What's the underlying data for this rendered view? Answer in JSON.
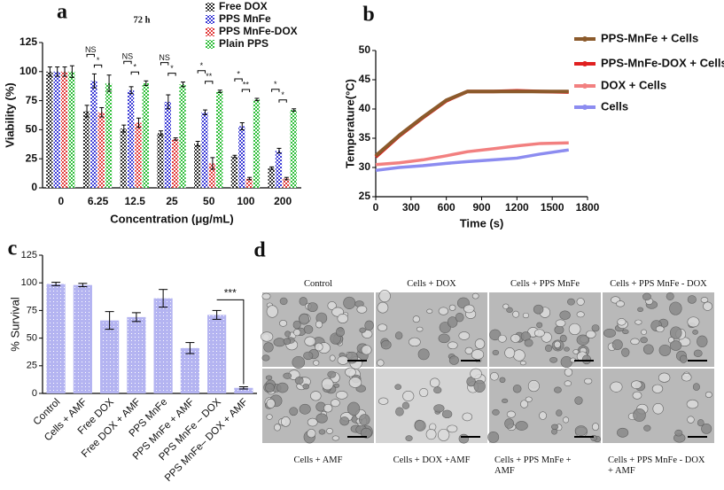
{
  "chart_data": [
    {
      "type": "bar",
      "label": "a",
      "title": "72 h",
      "x_label": "Concentration (μg/mL)",
      "y_label": "Viability (%)",
      "categories": [
        "0",
        "6.25",
        "12.5",
        "25",
        "50",
        "100",
        "200"
      ],
      "series": [
        {
          "name": "Free DOX",
          "color": "#2b2b2b",
          "values": [
            100,
            66,
            51,
            47,
            38,
            27,
            17
          ],
          "errors": [
            4,
            5,
            3,
            2,
            2,
            1,
            1
          ]
        },
        {
          "name": "PPS MnFe",
          "color": "#3b3bd6",
          "values": [
            100,
            92,
            84,
            74,
            65,
            53,
            32
          ],
          "errors": [
            4,
            6,
            3,
            6,
            2,
            3,
            2
          ]
        },
        {
          "name": "PPS MnFe-DOX",
          "color": "#e03a3a",
          "values": [
            100,
            65,
            56,
            42,
            21,
            8,
            8
          ],
          "errors": [
            4,
            4,
            4,
            1,
            5,
            1,
            1
          ]
        },
        {
          "name": "Plain PPS",
          "color": "#2fbf3a",
          "values": [
            100,
            90,
            90,
            89,
            83,
            76,
            67
          ],
          "errors": [
            5,
            7,
            2,
            2,
            1,
            1,
            1
          ]
        }
      ],
      "significance": [
        [],
        [
          "NS",
          "*"
        ],
        [
          "NS",
          "*"
        ],
        [
          "NS",
          "*"
        ],
        [
          "*",
          "**"
        ],
        [
          "*",
          "**"
        ],
        [
          "*",
          "*"
        ]
      ],
      "ylim": [
        0,
        125
      ],
      "yticks": [
        0,
        25,
        50,
        75,
        100,
        125
      ]
    },
    {
      "type": "line",
      "label": "b",
      "x_label": "Time (s)",
      "y_label": "Temperature(°C)",
      "x": [
        0,
        200,
        400,
        600,
        780,
        1000,
        1200,
        1400,
        1640
      ],
      "series": [
        {
          "name": "PPS-MnFe + Cells",
          "color": "#8b5a2b",
          "values": [
            32,
            35.5,
            38.6,
            41.5,
            43,
            43,
            43,
            43,
            43
          ]
        },
        {
          "name": "PPS-MnFe-DOX + Cells",
          "color": "#e02020",
          "values": [
            31.8,
            35.4,
            38.5,
            41.4,
            43,
            43,
            43.1,
            43,
            42.9
          ]
        },
        {
          "name": "DOX + Cells",
          "color": "#f28080",
          "values": [
            30.5,
            30.8,
            31.3,
            32,
            32.7,
            33.2,
            33.7,
            34.1,
            34.2
          ]
        },
        {
          "name": "Cells",
          "color": "#8c8cf0",
          "values": [
            29.5,
            30,
            30.3,
            30.7,
            31,
            31.3,
            31.6,
            32.3,
            33
          ]
        }
      ],
      "xlim": [
        0,
        1800
      ],
      "xticks": [
        0,
        300,
        600,
        900,
        1200,
        1500,
        1800
      ],
      "ylim": [
        25,
        50
      ],
      "yticks": [
        25,
        30,
        35,
        40,
        45,
        50
      ]
    },
    {
      "type": "bar",
      "label": "c",
      "y_label": "% Survival",
      "color": "#9a9aec",
      "categories": [
        "Control",
        "Cells + AMF",
        "Free DOX",
        "Free DOX + AMF",
        "PPS MnFe",
        "PPS MnFe + AMF",
        "PPS MnFe – DOX",
        "PPS MnFe– DOX + AMF"
      ],
      "values": [
        99,
        98,
        66,
        69,
        86,
        41,
        71,
        5
      ],
      "errors": [
        1.5,
        1.5,
        8,
        4,
        8,
        5,
        4,
        1
      ],
      "annotation": "***",
      "ylim": [
        0,
        125
      ],
      "yticks": [
        0,
        25,
        50,
        75,
        100,
        125
      ]
    }
  ],
  "micrographs": {
    "label": "d",
    "top_captions": [
      "Control",
      "Cells + DOX",
      "Cells + PPS MnFe",
      "Cells + PPS MnFe - DOX"
    ],
    "bottom_captions": [
      "Cells + AMF",
      "Cells + DOX +AMF",
      "Cells + PPS MnFe + AMF",
      "Cells + PPS MnFe - DOX + AMF"
    ]
  }
}
